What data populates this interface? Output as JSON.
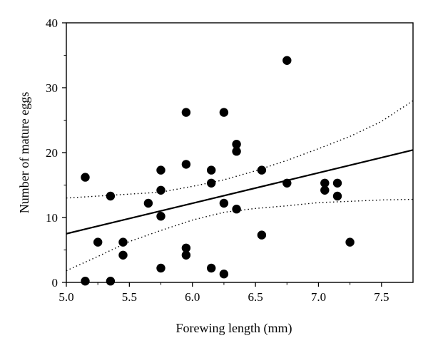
{
  "chart_data": {
    "type": "scatter",
    "title": "",
    "xlabel": "Forewing length (mm)",
    "ylabel": "Number of mature eggs",
    "xlim": [
      5.0,
      7.75
    ],
    "ylim": [
      0,
      40
    ],
    "xticks": [
      5.0,
      5.5,
      6.0,
      6.5,
      7.0,
      7.5
    ],
    "xtick_labels": [
      "5.0",
      "5.5",
      "6.0",
      "6.5",
      "7.0",
      "7.5"
    ],
    "yticks": [
      0,
      10,
      20,
      30,
      40
    ],
    "ytick_labels": [
      "0",
      "10",
      "20",
      "30",
      "40"
    ],
    "grid": false,
    "legend": "none",
    "colors": {
      "points": "#000000",
      "fit_line": "#000000",
      "confidence_band": "#000000"
    },
    "points": [
      {
        "x": 5.15,
        "y": 16.2
      },
      {
        "x": 5.15,
        "y": 0.2
      },
      {
        "x": 5.25,
        "y": 6.2
      },
      {
        "x": 5.35,
        "y": 13.3
      },
      {
        "x": 5.35,
        "y": 0.2
      },
      {
        "x": 5.45,
        "y": 6.2
      },
      {
        "x": 5.45,
        "y": 4.2
      },
      {
        "x": 5.65,
        "y": 12.2
      },
      {
        "x": 5.75,
        "y": 17.3
      },
      {
        "x": 5.75,
        "y": 14.2
      },
      {
        "x": 5.75,
        "y": 10.2
      },
      {
        "x": 5.75,
        "y": 2.2
      },
      {
        "x": 5.95,
        "y": 26.2
      },
      {
        "x": 5.95,
        "y": 18.2
      },
      {
        "x": 5.95,
        "y": 5.3
      },
      {
        "x": 5.95,
        "y": 4.2
      },
      {
        "x": 6.15,
        "y": 17.3
      },
      {
        "x": 6.15,
        "y": 15.3
      },
      {
        "x": 6.15,
        "y": 2.2
      },
      {
        "x": 6.25,
        "y": 26.2
      },
      {
        "x": 6.25,
        "y": 12.2
      },
      {
        "x": 6.25,
        "y": 1.3
      },
      {
        "x": 6.35,
        "y": 21.3
      },
      {
        "x": 6.35,
        "y": 20.2
      },
      {
        "x": 6.35,
        "y": 11.3
      },
      {
        "x": 6.55,
        "y": 17.3
      },
      {
        "x": 6.55,
        "y": 7.3
      },
      {
        "x": 6.75,
        "y": 34.2
      },
      {
        "x": 6.75,
        "y": 15.3
      },
      {
        "x": 7.05,
        "y": 15.3
      },
      {
        "x": 7.05,
        "y": 14.2
      },
      {
        "x": 7.15,
        "y": 15.3
      },
      {
        "x": 7.15,
        "y": 13.3
      },
      {
        "x": 7.25,
        "y": 6.2
      }
    ],
    "fit_line": {
      "x": [
        5.0,
        7.75
      ],
      "y": [
        7.5,
        20.4
      ]
    },
    "confidence_band": {
      "upper": {
        "x": [
          5.0,
          5.5,
          5.75,
          6.0,
          6.25,
          6.5,
          6.75,
          7.0,
          7.25,
          7.5,
          7.75
        ],
        "y": [
          13.0,
          13.6,
          13.9,
          14.8,
          15.8,
          17.2,
          18.8,
          20.6,
          22.5,
          24.8,
          28.0
        ]
      },
      "lower": {
        "x": [
          5.0,
          5.25,
          5.5,
          5.75,
          6.0,
          6.25,
          6.5,
          6.75,
          7.0,
          7.25,
          7.5,
          7.75
        ],
        "y": [
          1.8,
          4.0,
          6.3,
          8.0,
          9.6,
          10.8,
          11.4,
          11.8,
          12.3,
          12.5,
          12.7,
          12.8
        ]
      }
    }
  }
}
